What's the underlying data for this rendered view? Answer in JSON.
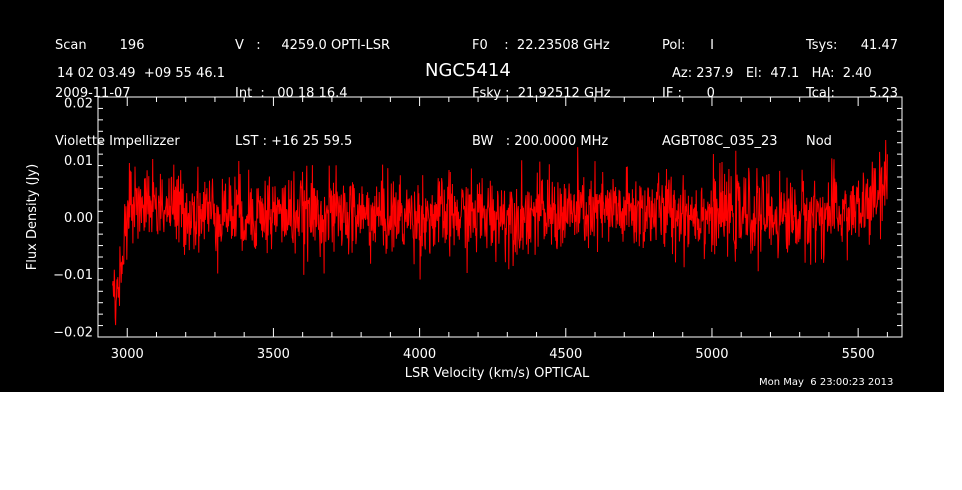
{
  "header": {
    "col1": [
      "Scan        196",
      "2009-11-07",
      "Violette Impellizzer"
    ],
    "col2": [
      "V   :     4259.0 OPTI-LSR",
      "Int  :   00 18 16.4",
      "LST : +16 25 59.5"
    ],
    "col3": [
      "F0    :  22.23508 GHz",
      "Fsky :  21.92512 GHz",
      "BW   : 200.0000 MHz"
    ],
    "col4": [
      "Pol:      I",
      "IF :      0",
      "AGBT08C_035_23"
    ],
    "col5a": [
      "Tsys:",
      "Tcal:",
      "Nod"
    ],
    "col5b": [
      "41.47",
      "5.23",
      ""
    ],
    "coords": "14 02 03.49  +09 55 46.1",
    "source": "NGC5414",
    "pointing": "Az: 237.9   El:  47.1   HA:  2.40",
    "timestamp": "Mon May  6 23:00:23 2013"
  },
  "chart_data": {
    "type": "line",
    "title": "NGC5414",
    "xlabel": "LSR Velocity (km/s) OPTICAL",
    "ylabel": "Flux Density (Jy)",
    "xlim": [
      2900,
      5650
    ],
    "ylim": [
      -0.021,
      0.021
    ],
    "xticks": [
      3000,
      3500,
      4000,
      4500,
      5000,
      5500
    ],
    "xtick_labels": [
      "3000",
      "3500",
      "4000",
      "4500",
      "5000",
      "5500"
    ],
    "yticks": [
      -0.02,
      -0.01,
      0.0,
      0.01,
      0.02
    ],
    "ytick_labels": [
      "−0.02",
      "−0.01",
      "0.00",
      "0.01",
      "0.02"
    ],
    "x_minor_step": 100,
    "y_minor_step": 0.002,
    "series": [
      {
        "color": "#ff0000",
        "x_range": [
          2950,
          5600
        ],
        "noise_sigma": 0.005,
        "mean": 0.0,
        "envelope": [
          {
            "x": 2950,
            "y": -0.012
          },
          {
            "x": 2965,
            "y": -0.015
          },
          {
            "x": 2985,
            "y": -0.004
          },
          {
            "x": 3010,
            "y": 0.002
          },
          {
            "x": 3050,
            "y": 0.003
          },
          {
            "x": 3200,
            "y": 0.001
          },
          {
            "x": 4000,
            "y": 0.0
          },
          {
            "x": 4800,
            "y": 0.001
          },
          {
            "x": 5300,
            "y": 0.0
          },
          {
            "x": 5500,
            "y": 0.001
          },
          {
            "x": 5560,
            "y": 0.003
          },
          {
            "x": 5600,
            "y": 0.006
          }
        ],
        "points": 1800
      }
    ],
    "grid": false,
    "legend": "none"
  }
}
